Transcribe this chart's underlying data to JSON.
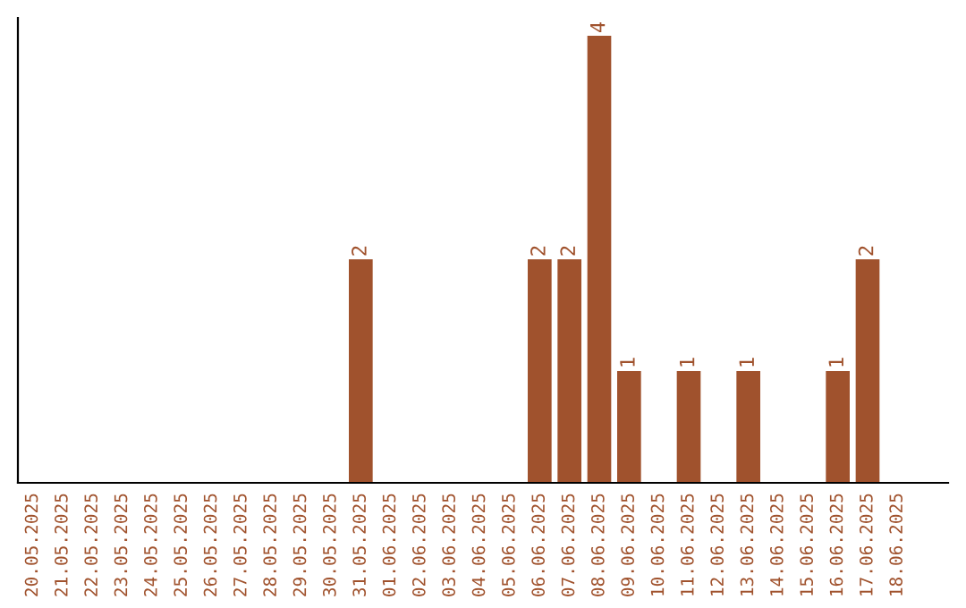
{
  "chart_data": {
    "type": "bar",
    "categories": [
      "20.05.2025",
      "21.05.2025",
      "22.05.2025",
      "23.05.2025",
      "24.05.2025",
      "25.05.2025",
      "26.05.2025",
      "27.05.2025",
      "28.05.2025",
      "29.05.2025",
      "30.05.2025",
      "31.05.2025",
      "01.06.2025",
      "02.06.2025",
      "03.06.2025",
      "04.06.2025",
      "05.06.2025",
      "06.06.2025",
      "07.06.2025",
      "08.06.2025",
      "09.06.2025",
      "10.06.2025",
      "11.06.2025",
      "12.06.2025",
      "13.06.2025",
      "14.06.2025",
      "15.06.2025",
      "16.06.2025",
      "17.06.2025",
      "18.06.2025"
    ],
    "values": [
      0,
      0,
      0,
      0,
      0,
      0,
      0,
      0,
      0,
      0,
      0,
      2,
      0,
      0,
      0,
      0,
      0,
      2,
      2,
      4,
      1,
      0,
      1,
      0,
      1,
      0,
      0,
      1,
      2,
      0
    ],
    "value_labels": [
      null,
      null,
      null,
      null,
      null,
      null,
      null,
      null,
      null,
      null,
      null,
      "2",
      null,
      null,
      null,
      null,
      null,
      "2",
      "2",
      "4",
      "1",
      null,
      "1",
      null,
      "1",
      null,
      null,
      "1",
      "2",
      null
    ],
    "color": "#a0522d",
    "grid": false,
    "legend": false
  }
}
